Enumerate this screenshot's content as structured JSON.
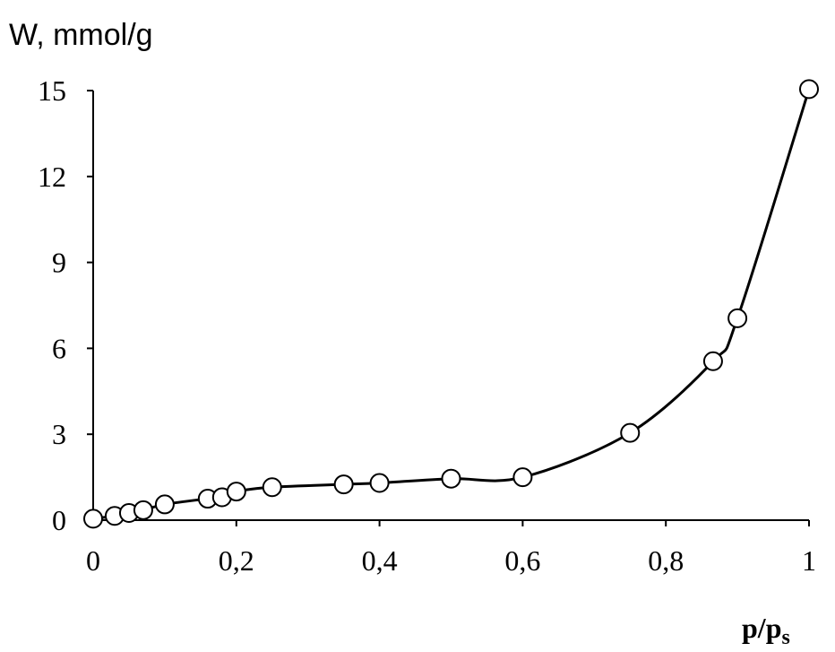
{
  "chart_data": {
    "type": "line",
    "title": "",
    "ylabel": "W, mmol/g",
    "xlabel_main": "p/p",
    "xlabel_sub": "s",
    "xlim": [
      0,
      1
    ],
    "ylim": [
      0,
      15
    ],
    "x_ticks": [
      0,
      0.2,
      0.4,
      0.6,
      0.8,
      1
    ],
    "x_tick_labels": [
      "0",
      "0,2",
      "0,4",
      "0,6",
      "0,8",
      "1"
    ],
    "y_ticks": [
      0,
      3,
      6,
      9,
      12,
      15
    ],
    "y_tick_labels": [
      "0",
      "3",
      "6",
      "9",
      "12",
      "15"
    ],
    "grid": false,
    "marker": "open-circle",
    "series": [
      {
        "x": [
          0,
          0.03,
          0.05,
          0.07,
          0.1,
          0.16,
          0.18,
          0.2,
          0.25,
          0.35,
          0.4,
          0.5,
          0.6,
          0.75,
          0.866,
          0.9,
          1.0
        ],
        "values": [
          0.05,
          0.15,
          0.25,
          0.35,
          0.55,
          0.75,
          0.8,
          1.0,
          1.15,
          1.25,
          1.3,
          1.45,
          1.5,
          3.05,
          5.55,
          7.05,
          15.05
        ]
      }
    ]
  }
}
